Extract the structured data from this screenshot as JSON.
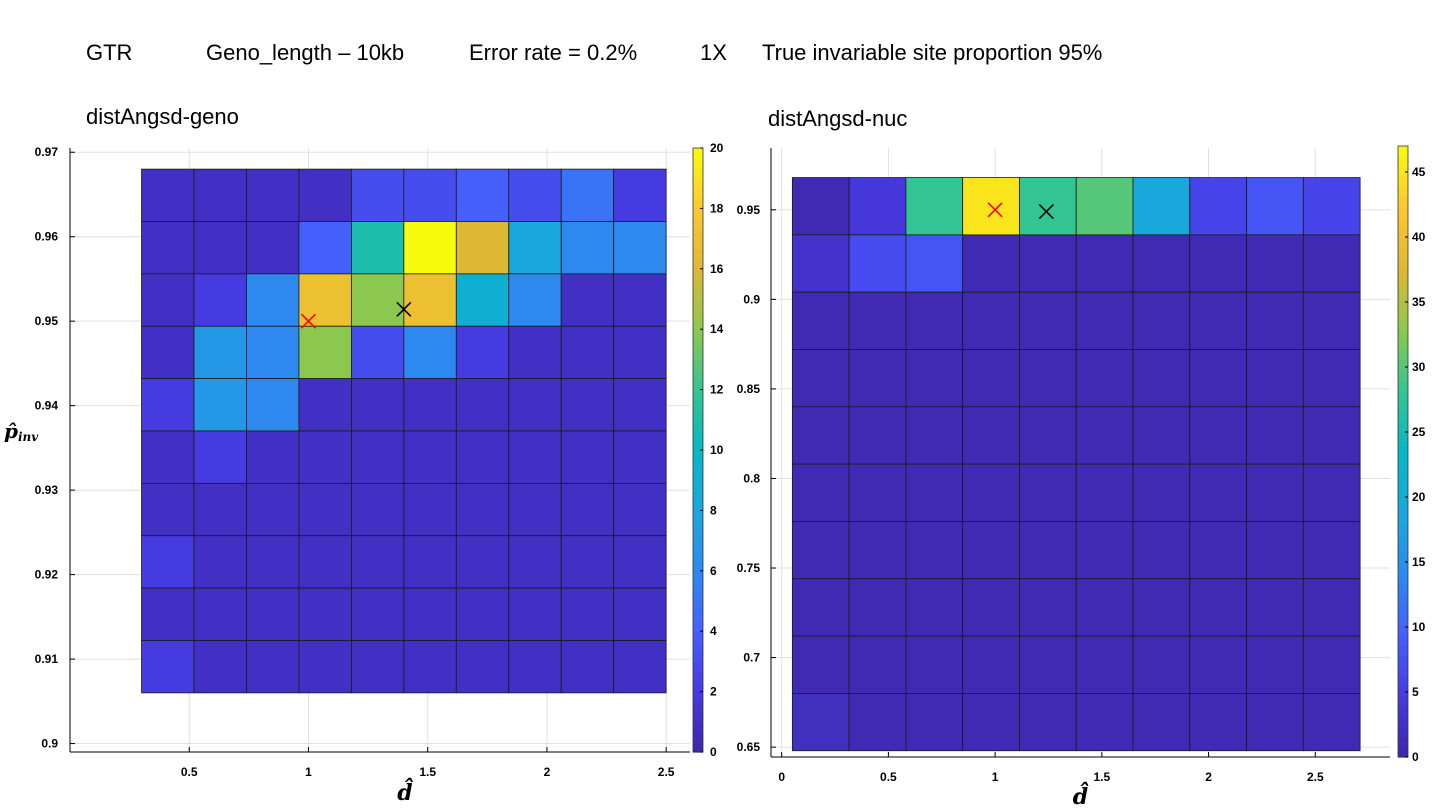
{
  "header": {
    "model": "GTR",
    "geno_length": "Geno_length – 10kb",
    "error_rate": "Error rate = 0.2%",
    "coverage": "1X",
    "true_inv": "True invariable site proportion 95%"
  },
  "chart_data": [
    {
      "type": "heatmap",
      "title": "distAngsd-geno",
      "xlabel": "d̂",
      "ylabel": "p̂",
      "ylabel_sub": "inv",
      "xlim": [
        0,
        2.6
      ],
      "ylim": [
        0.899,
        0.9705
      ],
      "xticks": [
        0.5,
        1,
        1.5,
        2,
        2.5
      ],
      "xtick_labels": [
        "0.5",
        "1",
        "1.5",
        "2",
        "2.5"
      ],
      "yticks": [
        0.9,
        0.91,
        0.92,
        0.93,
        0.94,
        0.95,
        0.96,
        0.97
      ],
      "ytick_labels": [
        "0.9",
        "0.91",
        "0.92",
        "0.93",
        "0.94",
        "0.95",
        "0.96",
        "0.97"
      ],
      "grid": true,
      "x_edges": [
        0.3,
        0.52,
        0.74,
        0.96,
        1.18,
        1.4,
        1.62,
        1.84,
        2.06,
        2.28,
        2.5
      ],
      "y_edges": [
        0.968,
        0.9618,
        0.9556,
        0.9494,
        0.9432,
        0.937,
        0.9308,
        0.9246,
        0.9184,
        0.9122,
        0.906
      ],
      "values": [
        [
          1,
          1,
          1,
          1,
          3,
          3,
          4,
          3,
          5,
          2
        ],
        [
          1,
          1,
          1,
          4,
          11,
          20,
          16,
          8,
          6,
          6
        ],
        [
          1,
          2,
          6,
          17,
          14,
          17,
          9,
          6,
          1,
          1
        ],
        [
          1,
          7,
          6,
          14,
          3,
          6,
          2,
          1,
          1,
          1
        ],
        [
          2,
          7,
          6,
          1,
          1,
          1,
          1,
          1,
          1,
          1
        ],
        [
          1,
          2,
          1,
          1,
          1,
          1,
          1,
          1,
          1,
          1
        ],
        [
          1,
          1,
          1,
          1,
          1,
          1,
          1,
          1,
          1,
          1
        ],
        [
          2,
          1,
          1,
          1,
          1,
          1,
          1,
          1,
          1,
          1
        ],
        [
          1,
          1,
          1,
          1,
          1,
          1,
          1,
          1,
          1,
          1
        ],
        [
          2,
          1,
          1,
          1,
          1,
          1,
          1,
          1,
          1,
          1
        ]
      ],
      "colorbar": {
        "min": 0,
        "max": 20,
        "ticks": [
          0,
          2,
          4,
          6,
          8,
          10,
          12,
          14,
          16,
          18,
          20
        ],
        "tick_labels": [
          "0",
          "2",
          "4",
          "6",
          "8",
          "10",
          "12",
          "14",
          "16",
          "18",
          "20"
        ]
      },
      "markers": [
        {
          "x": 1.0,
          "y": 0.95,
          "symbol": "x",
          "color": "#ff0000"
        },
        {
          "x": 1.4,
          "y": 0.9514,
          "symbol": "x",
          "color": "#000000"
        }
      ]
    },
    {
      "type": "heatmap",
      "title": "distAngsd-nuc",
      "xlabel": "d̂",
      "xlim": [
        -0.05,
        2.85
      ],
      "ylim": [
        0.6445,
        0.9845
      ],
      "xticks": [
        0,
        0.5,
        1,
        1.5,
        2,
        2.5
      ],
      "xtick_labels": [
        "0",
        "0.5",
        "1",
        "1.5",
        "2",
        "2.5"
      ],
      "yticks": [
        0.65,
        0.7,
        0.75,
        0.8,
        0.85,
        0.9,
        0.95
      ],
      "ytick_labels": [
        "0.65",
        "0.7",
        "0.75",
        "0.8",
        "0.85",
        "0.9",
        "0.95"
      ],
      "grid": true,
      "x_edges": [
        0.05,
        0.316,
        0.582,
        0.848,
        1.114,
        1.38,
        1.646,
        1.912,
        2.178,
        2.444,
        2.71
      ],
      "y_edges": [
        0.968,
        0.936,
        0.904,
        0.872,
        0.84,
        0.808,
        0.776,
        0.744,
        0.712,
        0.68,
        0.648
      ],
      "values": [
        [
          1,
          4,
          28,
          45,
          28,
          30,
          19,
          6,
          8,
          6
        ],
        [
          3,
          7,
          8,
          1,
          1,
          1,
          1,
          1,
          1,
          1
        ],
        [
          1,
          1,
          1,
          1,
          1,
          1,
          1,
          1,
          1,
          1
        ],
        [
          1,
          1,
          1,
          1,
          1,
          1,
          1,
          1,
          1,
          1
        ],
        [
          1,
          1,
          1,
          1,
          1,
          1,
          1,
          1,
          1,
          1
        ],
        [
          1,
          1,
          1,
          1,
          1,
          1,
          1,
          1,
          1,
          1
        ],
        [
          1,
          1,
          1,
          1,
          1,
          1,
          1,
          1,
          1,
          1
        ],
        [
          1,
          1,
          1,
          1,
          1,
          1,
          1,
          1,
          1,
          1
        ],
        [
          1,
          1,
          1,
          1,
          1,
          1,
          1,
          1,
          1,
          1
        ],
        [
          2,
          1,
          1,
          1,
          1,
          1,
          1,
          1,
          1,
          1
        ]
      ],
      "colorbar": {
        "min": 0,
        "max": 47,
        "ticks": [
          0,
          5,
          10,
          15,
          20,
          25,
          30,
          35,
          40,
          45
        ],
        "tick_labels": [
          "0",
          "5",
          "10",
          "15",
          "20",
          "25",
          "30",
          "35",
          "40",
          "45"
        ]
      },
      "markers": [
        {
          "x": 1.0,
          "y": 0.95,
          "symbol": "x",
          "color": "#ff0000"
        },
        {
          "x": 1.24,
          "y": 0.949,
          "symbol": "x",
          "color": "#000000"
        }
      ]
    }
  ]
}
